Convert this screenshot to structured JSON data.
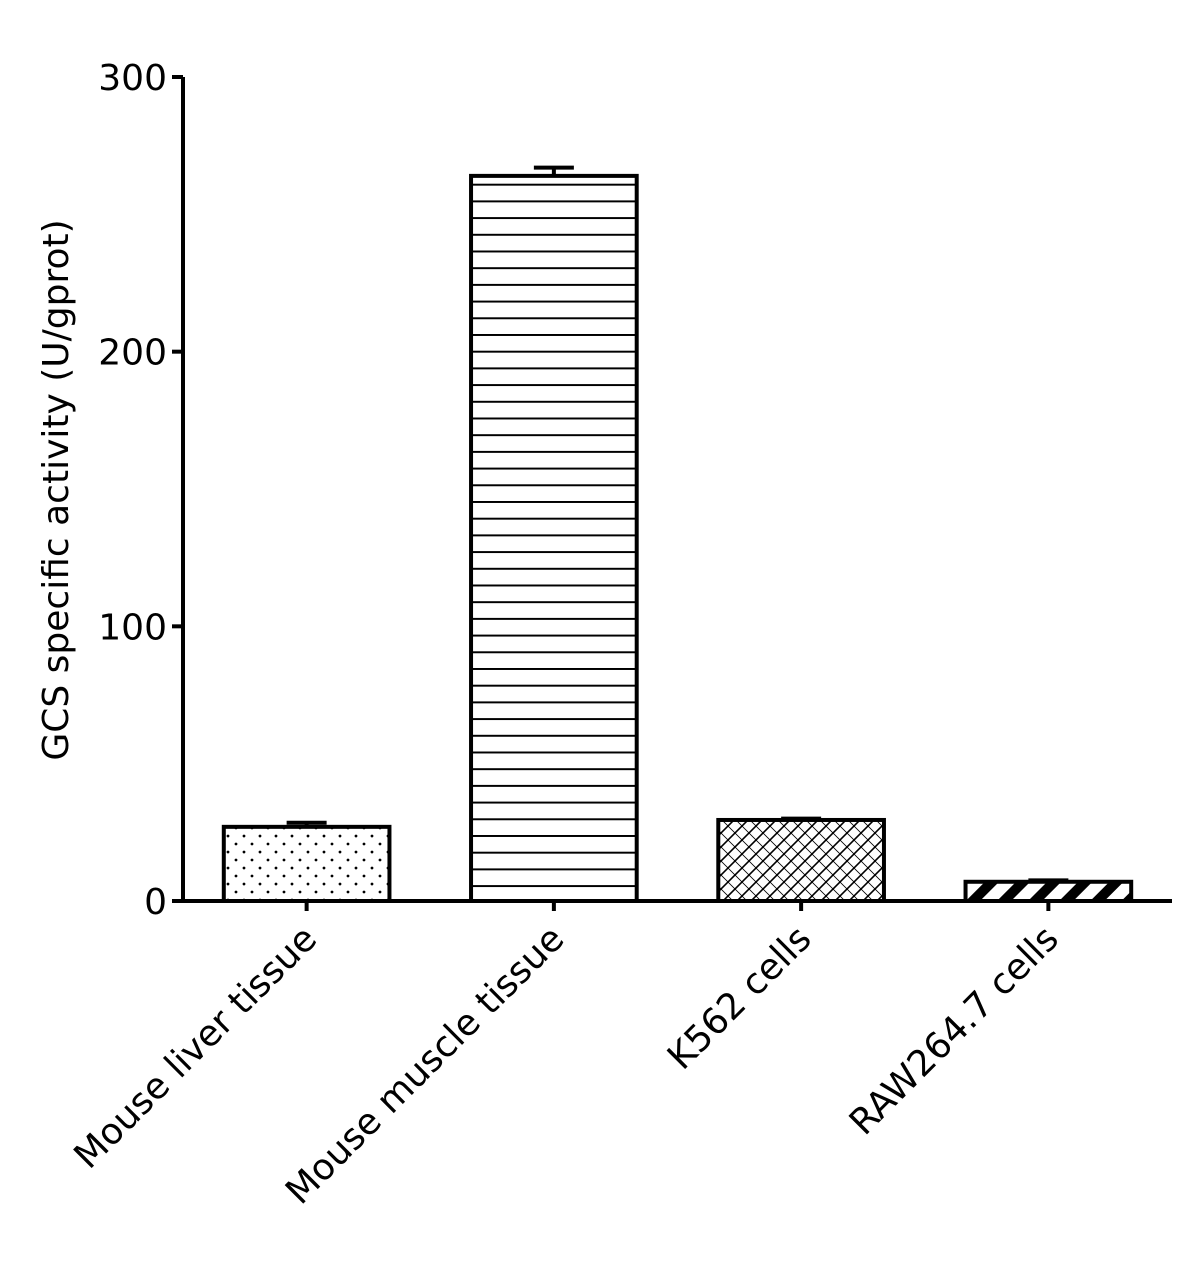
{
  "chart_data": {
    "type": "bar",
    "y_label": "GCS specific activity (U/gprot)",
    "categories": [
      "Mouse liver tissue",
      "Mouse muscle tissue",
      "K562 cells",
      "RAW264.7 cells"
    ],
    "values": [
      27,
      264,
      29.5,
      7
    ],
    "errors": [
      1.5,
      3,
      0.5,
      0.5
    ],
    "patterns": [
      "dots",
      "horizontal",
      "crosshatch",
      "diagonal"
    ],
    "color": "#000000",
    "ylim": [
      0,
      300
    ],
    "yticks": [
      0,
      100,
      200,
      300
    ],
    "grid": false
  }
}
